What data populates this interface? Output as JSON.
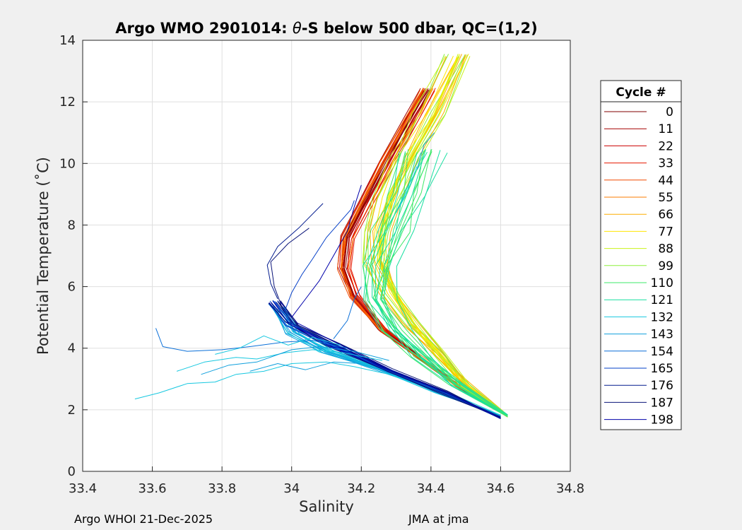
{
  "chart_data": {
    "type": "line",
    "title_prefix": "Argo WMO 2901014: ",
    "title_theta": "θ",
    "title_suffix": "-S below 500 dbar,  QC=(1,2)",
    "xlabel": "Salinity",
    "ylabel": "Potential Temperature (˚C)",
    "xlim": [
      33.4,
      34.8
    ],
    "ylim": [
      0,
      14
    ],
    "xticks": [
      33.4,
      33.6,
      33.8,
      34,
      34.2,
      34.4,
      34.6,
      34.8
    ],
    "xtick_labels": [
      "33.4",
      "33.6",
      "33.8",
      "34",
      "34.2",
      "34.4",
      "34.6",
      "34.8"
    ],
    "yticks": [
      0,
      2,
      4,
      6,
      8,
      10,
      12,
      14
    ],
    "ytick_labels": [
      "0",
      "2",
      "4",
      "6",
      "8",
      "10",
      "12",
      "14"
    ],
    "grid": true,
    "legend": {
      "title": "Cycle #",
      "placement": "right-outside",
      "entries": [
        {
          "label": "0",
          "color": "#800000"
        },
        {
          "label": "11",
          "color": "#a50000"
        },
        {
          "label": "22",
          "color": "#cc0000"
        },
        {
          "label": "33",
          "color": "#e61a00"
        },
        {
          "label": "44",
          "color": "#f24a00"
        },
        {
          "label": "55",
          "color": "#fb7b00"
        },
        {
          "label": "66",
          "color": "#fdae00"
        },
        {
          "label": "77",
          "color": "#ffe600"
        },
        {
          "label": "88",
          "color": "#c9f21a"
        },
        {
          "label": "99",
          "color": "#8ef03c"
        },
        {
          "label": "110",
          "color": "#3ee86a"
        },
        {
          "label": "121",
          "color": "#17dfa0"
        },
        {
          "label": "132",
          "color": "#17c8e0"
        },
        {
          "label": "143",
          "color": "#10a0dd"
        },
        {
          "label": "154",
          "color": "#0a6fd8"
        },
        {
          "label": "165",
          "color": "#0640c8"
        },
        {
          "label": "176",
          "color": "#041c8e"
        },
        {
          "label": "187",
          "color": "#0a1478"
        },
        {
          "label": "198",
          "color": "#0000aa"
        }
      ]
    },
    "groups": [
      {
        "name": "0-55",
        "colors": [
          "#800000",
          "#a50000",
          "#cc0000",
          "#e61a00",
          "#f24a00",
          "#fb7b00"
        ],
        "count": 24,
        "spread": 0.025,
        "noise": 0.004,
        "points": [
          [
            34.62,
            1.8
          ],
          [
            34.5,
            2.6
          ],
          [
            34.38,
            3.6
          ],
          [
            34.26,
            4.6
          ],
          [
            34.18,
            5.7
          ],
          [
            34.15,
            6.6
          ],
          [
            34.16,
            7.6
          ],
          [
            34.21,
            8.7
          ],
          [
            34.27,
            10.0
          ],
          [
            34.34,
            11.4
          ],
          [
            34.39,
            12.4
          ]
        ]
      },
      {
        "name": "66-99",
        "colors": [
          "#fdae00",
          "#ffe600",
          "#c9f21a",
          "#8ef03c"
        ],
        "count": 22,
        "spread": 0.05,
        "noise": 0.012,
        "points": [
          [
            34.62,
            1.8
          ],
          [
            34.5,
            2.8
          ],
          [
            34.42,
            3.8
          ],
          [
            34.34,
            4.8
          ],
          [
            34.28,
            5.8
          ],
          [
            34.24,
            6.8
          ],
          [
            34.24,
            7.8
          ],
          [
            34.27,
            8.9
          ],
          [
            34.32,
            10.2
          ],
          [
            34.39,
            11.6
          ],
          [
            34.47,
            13.5
          ]
        ]
      },
      {
        "name": "110-121",
        "colors": [
          "#3ee86a",
          "#17dfa0"
        ],
        "count": 16,
        "spread": 0.06,
        "noise": 0.018,
        "points": [
          [
            34.62,
            1.8
          ],
          [
            34.48,
            2.8
          ],
          [
            34.38,
            3.7
          ],
          [
            34.3,
            4.6
          ],
          [
            34.25,
            5.6
          ],
          [
            34.26,
            6.7
          ],
          [
            34.3,
            7.8
          ],
          [
            34.34,
            9.0
          ],
          [
            34.38,
            10.4
          ]
        ]
      },
      {
        "name": "132-143",
        "colors": [
          "#17c8e0",
          "#10a0dd"
        ],
        "count": 14,
        "spread": 0.03,
        "noise": 0.01,
        "points": [
          [
            34.6,
            1.8
          ],
          [
            34.42,
            2.6
          ],
          [
            34.26,
            3.3
          ],
          [
            34.1,
            3.9
          ],
          [
            34.0,
            4.5
          ],
          [
            33.96,
            5.3
          ]
        ]
      },
      {
        "name": "154-198",
        "colors": [
          "#0a6fd8",
          "#0640c8",
          "#041c8e",
          "#0a1478",
          "#0000aa"
        ],
        "count": 20,
        "spread": 0.02,
        "noise": 0.004,
        "points": [
          [
            34.6,
            1.75
          ],
          [
            34.44,
            2.55
          ],
          [
            34.28,
            3.3
          ],
          [
            34.12,
            4.1
          ],
          [
            34.0,
            4.8
          ],
          [
            33.95,
            5.5
          ]
        ]
      }
    ],
    "tails": [
      {
        "color": "#17c8e0",
        "points": [
          [
            33.55,
            2.35
          ],
          [
            33.62,
            2.55
          ],
          [
            33.7,
            2.85
          ],
          [
            33.78,
            2.9
          ],
          [
            33.84,
            3.15
          ],
          [
            33.92,
            3.25
          ],
          [
            34.0,
            3.5
          ],
          [
            34.1,
            3.55
          ],
          [
            34.18,
            3.4
          ],
          [
            34.3,
            3.1
          ]
        ]
      },
      {
        "color": "#17c8e0",
        "points": [
          [
            33.67,
            3.25
          ],
          [
            33.75,
            3.55
          ],
          [
            33.84,
            3.7
          ],
          [
            33.9,
            3.65
          ],
          [
            33.98,
            3.85
          ],
          [
            34.06,
            3.95
          ],
          [
            34.15,
            3.85
          ],
          [
            34.26,
            3.6
          ]
        ]
      },
      {
        "color": "#10a0dd",
        "points": [
          [
            33.74,
            3.15
          ],
          [
            33.82,
            3.45
          ],
          [
            33.9,
            3.55
          ],
          [
            34.0,
            3.95
          ],
          [
            34.08,
            4.05
          ],
          [
            34.18,
            3.9
          ],
          [
            34.28,
            3.6
          ]
        ]
      },
      {
        "color": "#0a6fd8",
        "points": [
          [
            33.61,
            4.65
          ],
          [
            33.63,
            4.05
          ],
          [
            33.7,
            3.9
          ],
          [
            33.8,
            3.95
          ],
          [
            33.88,
            4.05
          ],
          [
            33.98,
            4.2
          ],
          [
            34.06,
            4.25
          ],
          [
            34.16,
            4.0
          ]
        ]
      },
      {
        "color": "#17c8e0",
        "points": [
          [
            33.78,
            3.8
          ],
          [
            33.85,
            4.0
          ],
          [
            33.92,
            4.4
          ],
          [
            33.99,
            4.1
          ],
          [
            34.06,
            4.35
          ],
          [
            34.14,
            4.1
          ]
        ]
      },
      {
        "color": "#10a0dd",
        "points": [
          [
            33.88,
            3.25
          ],
          [
            33.96,
            3.5
          ],
          [
            34.04,
            3.3
          ],
          [
            34.12,
            3.55
          ],
          [
            34.2,
            3.5
          ]
        ]
      },
      {
        "color": "#041c8e",
        "points": [
          [
            33.96,
            5.6
          ],
          [
            33.94,
            6.1
          ],
          [
            33.93,
            6.7
          ],
          [
            33.96,
            7.3
          ],
          [
            34.02,
            7.9
          ],
          [
            34.09,
            8.7
          ]
        ]
      },
      {
        "color": "#0a1478",
        "points": [
          [
            33.97,
            5.4
          ],
          [
            33.95,
            6.0
          ],
          [
            33.94,
            6.8
          ],
          [
            33.99,
            7.4
          ],
          [
            34.05,
            7.9
          ]
        ]
      },
      {
        "color": "#0640c8",
        "points": [
          [
            33.98,
            5.2
          ],
          [
            34.0,
            5.8
          ],
          [
            34.03,
            6.4
          ],
          [
            34.06,
            6.9
          ],
          [
            34.1,
            7.6
          ],
          [
            34.17,
            8.5
          ],
          [
            34.18,
            8.8
          ]
        ]
      },
      {
        "color": "#0000aa",
        "points": [
          [
            34.0,
            5.0
          ],
          [
            34.04,
            5.6
          ],
          [
            34.08,
            6.2
          ],
          [
            34.12,
            7.0
          ],
          [
            34.16,
            7.8
          ],
          [
            34.18,
            8.6
          ],
          [
            34.2,
            9.3
          ]
        ]
      },
      {
        "color": "#0a6fd8",
        "points": [
          [
            34.12,
            4.3
          ],
          [
            34.16,
            4.9
          ],
          [
            34.18,
            5.6
          ],
          [
            34.2,
            6.0
          ]
        ]
      },
      {
        "color": "#10a0dd",
        "points": [
          [
            34.36,
            9.8
          ],
          [
            34.38,
            10.6
          ],
          [
            34.41,
            11.0
          ]
        ]
      },
      {
        "color": "#17c8e0",
        "points": [
          [
            34.3,
            8.4
          ],
          [
            34.34,
            9.3
          ],
          [
            34.36,
            9.9
          ]
        ]
      }
    ]
  },
  "footer": {
    "left": "Argo WHOI 21-Dec-2025",
    "right": "JMA at jma"
  }
}
